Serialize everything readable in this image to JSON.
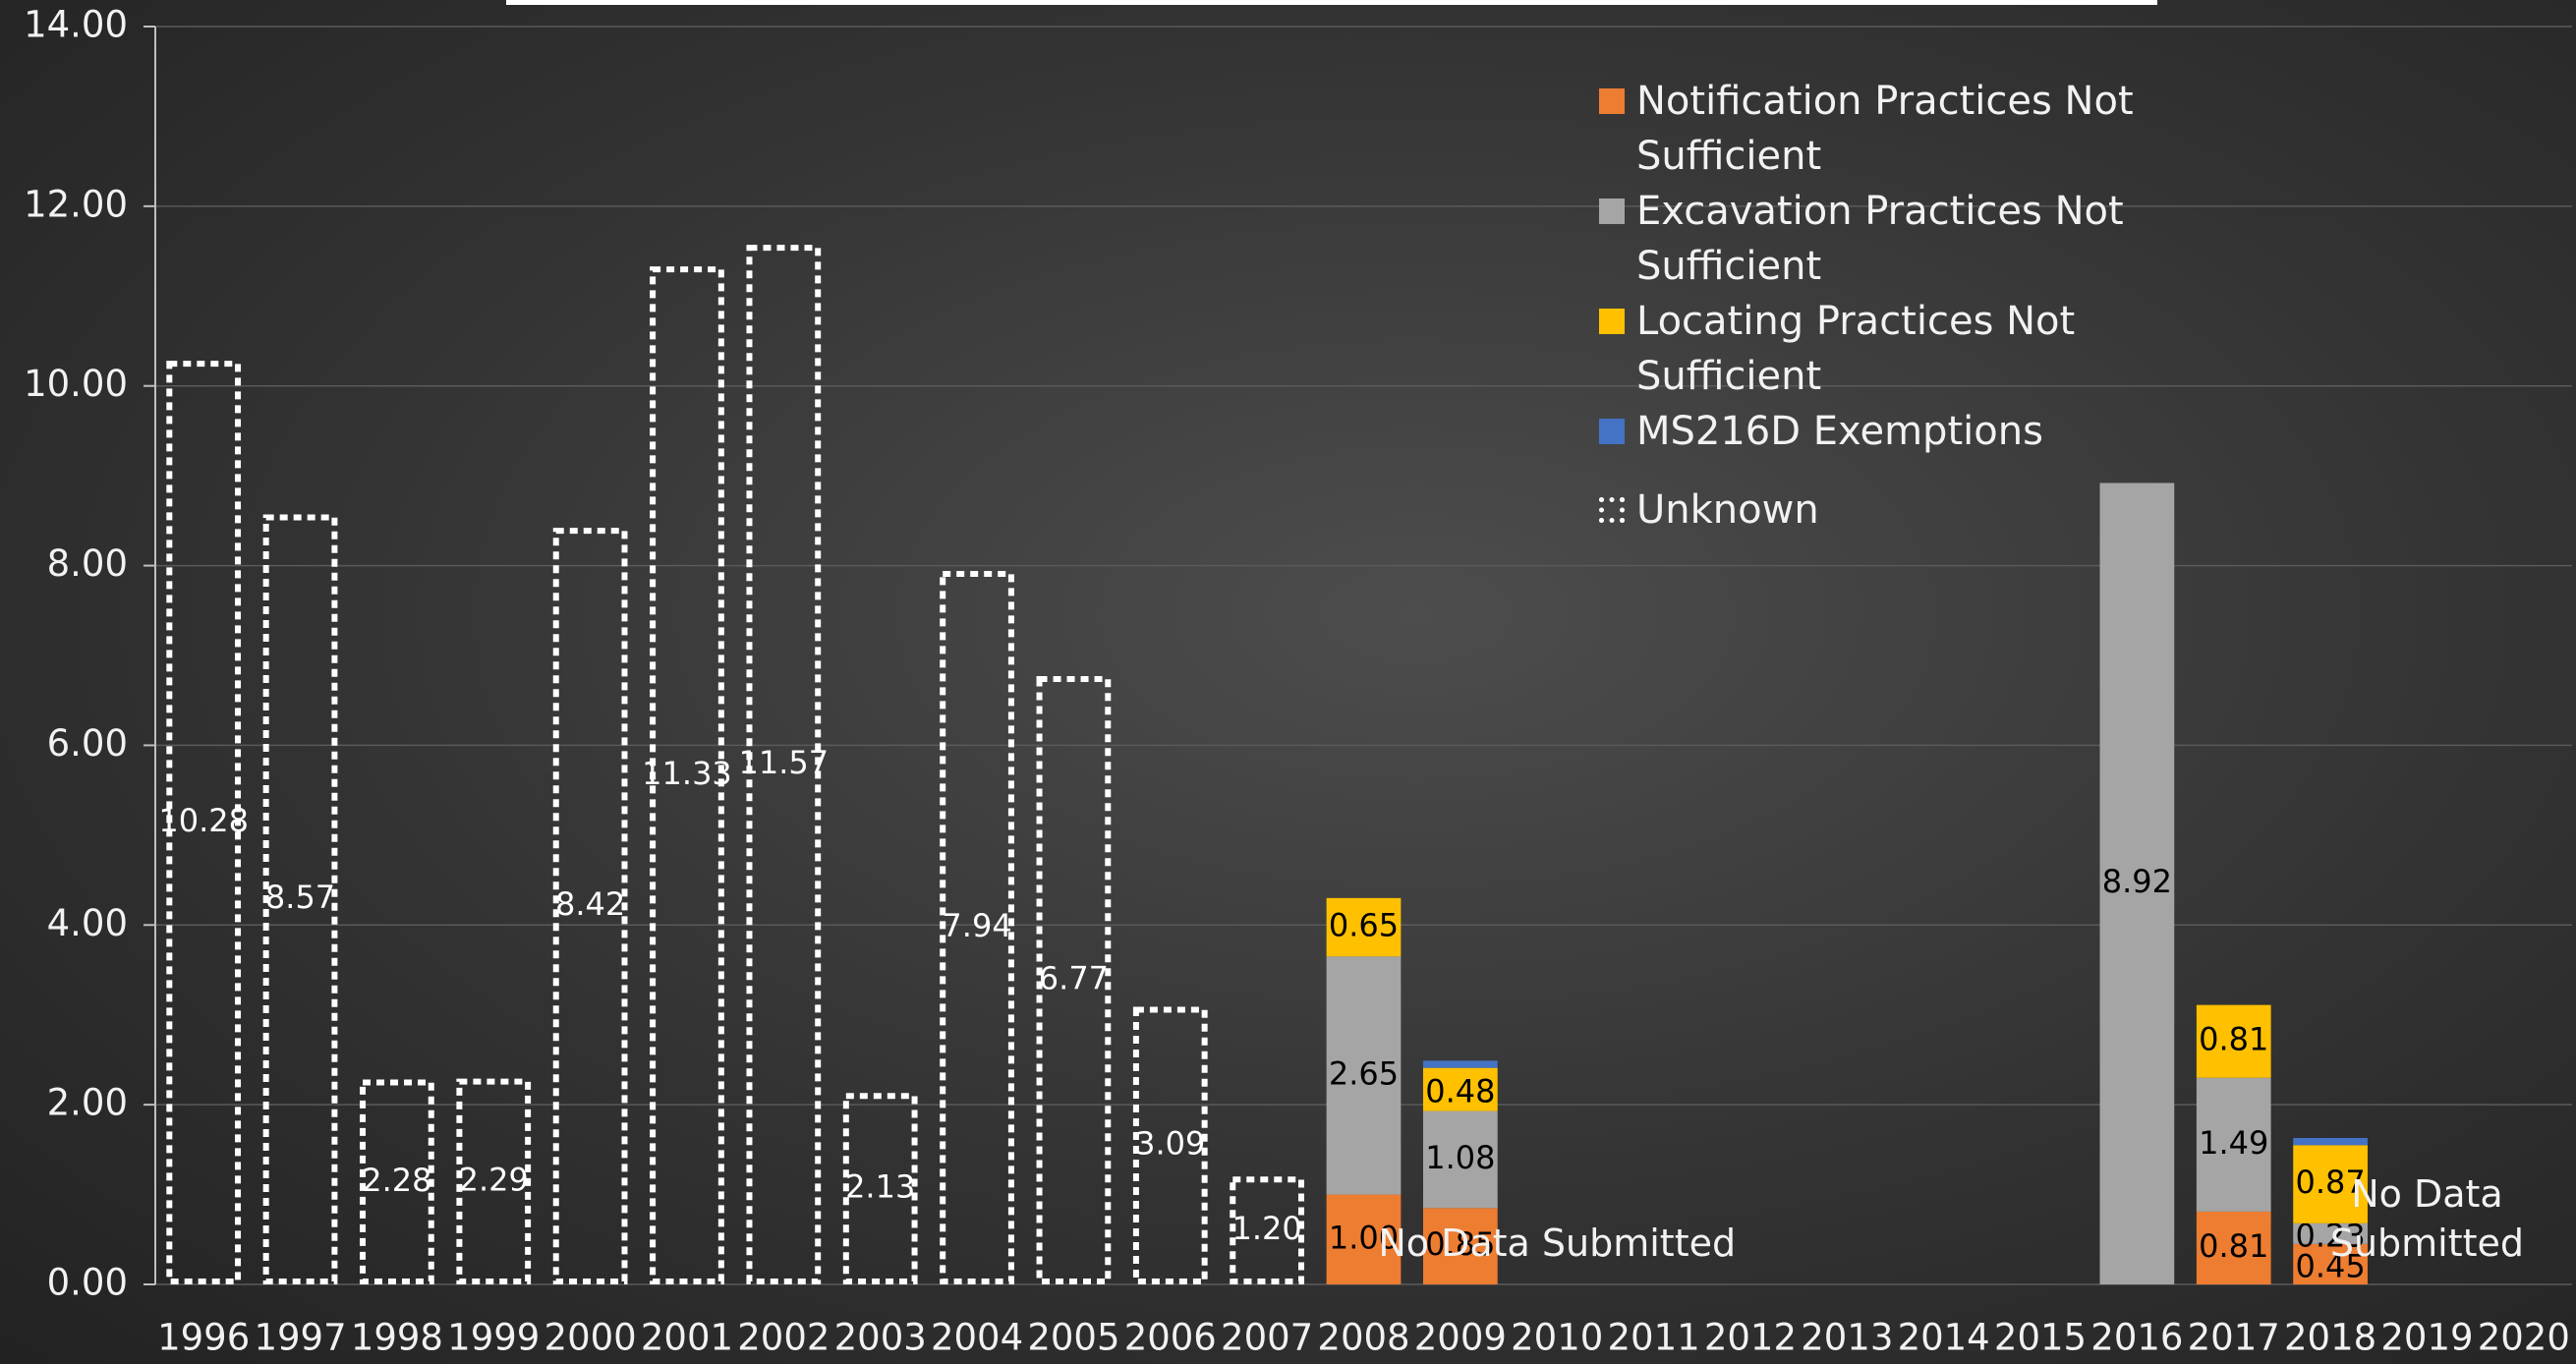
{
  "chart_data": {
    "type": "stacked_bar",
    "categories": [
      "1996",
      "1997",
      "1998",
      "1999",
      "2000",
      "2001",
      "2002",
      "2003",
      "2004",
      "2005",
      "2006",
      "2007",
      "2008",
      "2009",
      "2010",
      "2011",
      "2012",
      "2013",
      "2014",
      "2015",
      "2016",
      "2017",
      "2018",
      "2019",
      "2020"
    ],
    "series": [
      {
        "name": "Notification Practices Not Sufficient",
        "color": "#ed7d31",
        "style": "solid",
        "values": [
          null,
          null,
          null,
          null,
          null,
          null,
          null,
          null,
          null,
          null,
          null,
          null,
          1.0,
          0.85,
          null,
          null,
          null,
          null,
          null,
          null,
          null,
          0.81,
          0.45,
          null,
          null
        ],
        "value_labels": [
          null,
          null,
          null,
          null,
          null,
          null,
          null,
          null,
          null,
          null,
          null,
          null,
          "1.00",
          "0.85",
          null,
          null,
          null,
          null,
          null,
          null,
          null,
          "0.81",
          "0.45",
          null,
          null
        ]
      },
      {
        "name": "Excavation Practices Not Sufficient",
        "color": "#a5a5a5",
        "style": "solid",
        "values": [
          null,
          null,
          null,
          null,
          null,
          null,
          null,
          null,
          null,
          null,
          null,
          null,
          2.65,
          1.08,
          null,
          null,
          null,
          null,
          null,
          null,
          8.92,
          1.49,
          0.23,
          null,
          null
        ],
        "value_labels": [
          null,
          null,
          null,
          null,
          null,
          null,
          null,
          null,
          null,
          null,
          null,
          null,
          "2.65",
          "1.08",
          null,
          null,
          null,
          null,
          null,
          null,
          "8.92",
          "1.49",
          "0.23",
          null,
          null
        ]
      },
      {
        "name": "Locating Practices Not Sufficient",
        "color": "#ffc000",
        "style": "solid",
        "values": [
          null,
          null,
          null,
          null,
          null,
          null,
          null,
          null,
          null,
          null,
          null,
          null,
          0.65,
          0.48,
          null,
          null,
          null,
          null,
          null,
          null,
          null,
          0.81,
          0.87,
          null,
          null
        ],
        "value_labels": [
          null,
          null,
          null,
          null,
          null,
          null,
          null,
          null,
          null,
          null,
          null,
          null,
          "0.65",
          "0.48",
          null,
          null,
          null,
          null,
          null,
          null,
          null,
          "0.81",
          "0.87",
          null,
          null
        ]
      },
      {
        "name": "MS216D Exemptions",
        "color": "#4472c4",
        "style": "solid",
        "values": [
          null,
          null,
          null,
          null,
          null,
          null,
          null,
          null,
          null,
          null,
          null,
          null,
          null,
          0.08,
          null,
          null,
          null,
          null,
          null,
          null,
          null,
          null,
          0.08,
          null,
          null
        ]
      },
      {
        "name": "Unknown",
        "color": "#ffffff",
        "style": "dashed-outline",
        "values": [
          10.28,
          8.57,
          2.28,
          2.29,
          8.42,
          11.33,
          11.57,
          2.13,
          7.94,
          6.77,
          3.09,
          1.2,
          null,
          null,
          null,
          null,
          null,
          null,
          null,
          null,
          null,
          null,
          null,
          null,
          null
        ],
        "value_labels": [
          "10.28",
          "8.57",
          "2.28",
          "2.29",
          "8.42",
          "11.33",
          "11.57",
          "2.13",
          "7.94",
          "6.77",
          "3.09",
          "1.20",
          null,
          null,
          null,
          null,
          null,
          null,
          null,
          null,
          null,
          null,
          null,
          null,
          null
        ]
      }
    ],
    "ylim": [
      0,
      14
    ],
    "yticks": [
      {
        "value": 0,
        "label": "0.00"
      },
      {
        "value": 2,
        "label": "2.00"
      },
      {
        "value": 4,
        "label": "4.00"
      },
      {
        "value": 6,
        "label": "6.00"
      },
      {
        "value": 8,
        "label": "8.00"
      },
      {
        "value": 10,
        "label": "10.00"
      },
      {
        "value": 12,
        "label": "12.00"
      },
      {
        "value": 14,
        "label": "14.00"
      }
    ],
    "grid": true,
    "legend": "top-right",
    "annotations": [
      "No Data Submitted",
      "No Data Submitted"
    ]
  }
}
